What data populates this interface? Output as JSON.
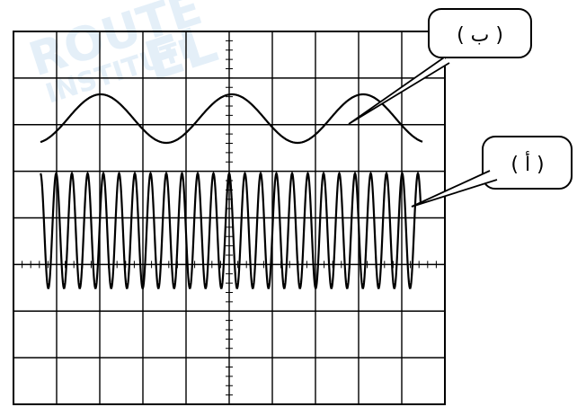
{
  "watermark": {
    "line1": "ROUTE",
    "line2": "INSTITUTE",
    "line3": "EL",
    "color": "#cfe3f4"
  },
  "callouts": {
    "b_label": "( ب )",
    "a_label": "( أ )"
  },
  "waves": {
    "trace_b": {
      "cycles_visible": 3
    },
    "trace_a": {
      "cycles_visible": 24.5
    }
  },
  "colors": {
    "grid": "#000000",
    "trace": "#000000",
    "background": "#ffffff"
  }
}
